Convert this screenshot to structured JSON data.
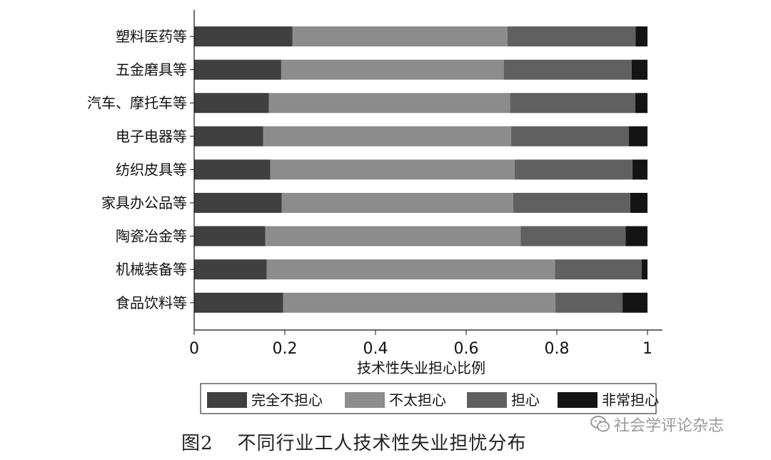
{
  "chart_data": {
    "type": "bar",
    "orientation": "horizontal",
    "stacked": true,
    "categories": [
      "塑料医药等",
      "五金磨具等",
      "汽车、摩托车等",
      "电子电器等",
      "纺织皮具等",
      "家具办公品等",
      "陶瓷冶金等",
      "机械装备等",
      "食品饮料等"
    ],
    "series": [
      {
        "name": "完全不担心",
        "color": "#404040",
        "values": [
          0.217,
          0.192,
          0.165,
          0.152,
          0.168,
          0.193,
          0.157,
          0.16,
          0.196
        ]
      },
      {
        "name": "不太担心",
        "color": "#8c8c8c",
        "values": [
          0.474,
          0.491,
          0.532,
          0.547,
          0.539,
          0.511,
          0.563,
          0.636,
          0.601
        ]
      },
      {
        "name": "担心",
        "color": "#606060",
        "values": [
          0.283,
          0.282,
          0.276,
          0.26,
          0.26,
          0.258,
          0.232,
          0.191,
          0.148
        ]
      },
      {
        "name": "非常担心",
        "color": "#141414",
        "values": [
          0.026,
          0.035,
          0.027,
          0.041,
          0.033,
          0.038,
          0.048,
          0.013,
          0.055
        ]
      }
    ],
    "xlabel": "技术性失业担心比例",
    "xlim": [
      0,
      1
    ],
    "xticks": [
      0,
      0.2,
      0.4,
      0.6,
      0.8,
      1
    ],
    "xtick_labels": [
      "0",
      "0.2",
      "0.4",
      "0.6",
      "0.8",
      "1"
    ],
    "grid": false,
    "legend_position": "bottom"
  },
  "caption": {
    "num": "图2",
    "text": "不同行业工人技术性失业担忧分布"
  },
  "watermark": {
    "text": "社会学评论杂志",
    "icon": "wechat-icon"
  }
}
